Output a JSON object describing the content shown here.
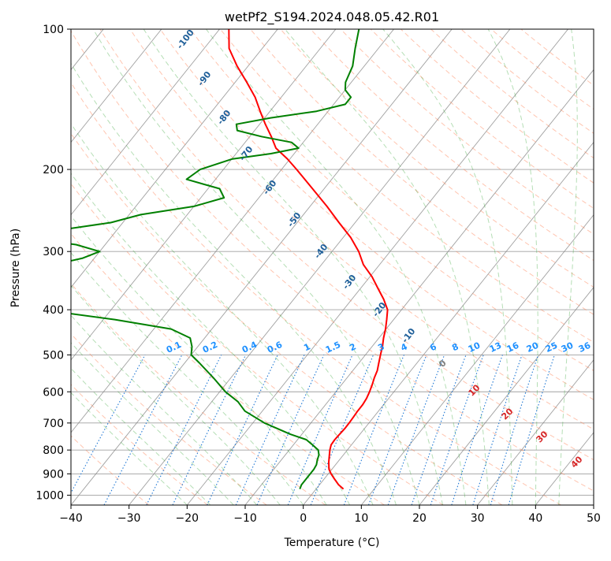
{
  "chart_data": {
    "type": "line",
    "chart_kind": "skew-T log-p diagram",
    "title": "wetPf2_S194.2024.048.05.42.R01",
    "xlabel": "Temperature (°C)",
    "ylabel": "Pressure (hPa)",
    "xlim": [
      -40,
      50
    ],
    "ylim": [
      1050,
      100
    ],
    "y_scale": "log",
    "grid": true,
    "x_ticks": [
      -40,
      -30,
      -20,
      -10,
      0,
      10,
      20,
      30,
      40,
      50
    ],
    "x_tick_labels": [
      "−40",
      "−30",
      "−20",
      "−10",
      "0",
      "10",
      "20",
      "30",
      "40",
      "50"
    ],
    "y_ticks": [
      1000,
      900,
      800,
      700,
      600,
      500,
      400,
      300,
      200,
      100
    ],
    "y_tick_labels": [
      "1000",
      "900",
      "800",
      "700",
      "600",
      "500",
      "400",
      "300",
      "200",
      "100"
    ],
    "colors": {
      "temperature": "#ff0000",
      "dewpoint": "#008000",
      "isotherm": "#808080",
      "dry_adiabat": "#ff7f50",
      "moist_adiabat": "#2ca02c",
      "mixing_ratio": "#1f77d4",
      "dry_label": "#1f5f99",
      "mixing_label": "#1e90ff",
      "moist_label": "#d62728"
    },
    "series": [
      {
        "name": "temperature",
        "pressure": [
          970,
          950,
          920,
          900,
          880,
          850,
          820,
          800,
          780,
          760,
          740,
          720,
          700,
          680,
          660,
          640,
          620,
          600,
          580,
          560,
          540,
          520,
          500,
          480,
          460,
          440,
          420,
          400,
          380,
          360,
          340,
          320,
          300,
          280,
          260,
          240,
          220,
          200,
          190,
          180,
          170,
          160,
          150,
          140,
          130,
          120,
          110,
          100
        ],
        "temperature": [
          4.7,
          3.3,
          1.6,
          0.5,
          -0.5,
          -1.5,
          -2.4,
          -3.0,
          -3.5,
          -3.6,
          -3.5,
          -3.4,
          -3.4,
          -3.5,
          -3.6,
          -3.6,
          -3.8,
          -4.2,
          -4.7,
          -5.3,
          -5.8,
          -6.6,
          -7.4,
          -8.2,
          -9.2,
          -10.1,
          -11.2,
          -12.4,
          -14.5,
          -17.0,
          -19.6,
          -22.8,
          -25.4,
          -28.7,
          -32.8,
          -37.1,
          -42.0,
          -47.4,
          -50.4,
          -53.9,
          -56.3,
          -59.0,
          -61.7,
          -64.5,
          -68.0,
          -71.9,
          -75.7,
          -78.4
        ]
      },
      {
        "name": "dewpoint",
        "pressure": [
          970,
          950,
          920,
          900,
          880,
          860,
          840,
          820,
          800,
          780,
          760,
          740,
          700,
          660,
          630,
          600,
          560,
          520,
          500,
          480,
          460,
          440,
          420,
          400,
          380,
          370,
          360,
          350,
          340,
          330,
          320,
          310,
          300,
          290,
          285,
          280,
          270,
          260,
          250,
          240,
          230,
          220,
          210,
          200,
          190,
          185,
          180,
          175,
          170,
          165,
          160,
          155,
          150,
          145,
          140,
          135,
          130,
          120,
          110,
          100
        ],
        "dewpoint": [
          -2.8,
          -3.1,
          -3.1,
          -3.1,
          -3.1,
          -3.3,
          -3.8,
          -4.2,
          -5.0,
          -6.7,
          -8.5,
          -12.0,
          -18.0,
          -23.0,
          -25.5,
          -29.0,
          -33.0,
          -37.5,
          -40.0,
          -41.0,
          -42.5,
          -47.0,
          -58.0,
          -72.0,
          -98.0,
          -100.0,
          -94.0,
          -87.0,
          -86.0,
          -82.0,
          -76.0,
          -72.0,
          -70.0,
          -75.0,
          -80.0,
          -86.0,
          -80.0,
          -72.0,
          -68.0,
          -60.0,
          -56.0,
          -58.0,
          -65.0,
          -64.0,
          -60.0,
          -54.0,
          -50.0,
          -52.0,
          -58.0,
          -63.0,
          -64.0,
          -59.0,
          -52.0,
          -48.0,
          -48.0,
          -50.0,
          -51.0,
          -52.0,
          -54.0,
          -56.0
        ]
      }
    ],
    "dry_adiabat_labels": [
      "-100",
      "-90",
      "-80",
      "-70",
      "-60",
      "-50",
      "-40",
      "-30",
      "-20",
      "-10"
    ],
    "mixing_ratio_labels": [
      "0.1",
      "0.2",
      "0.4",
      "0.6",
      "1",
      "1.5",
      "2",
      "3",
      "4",
      "6",
      "8",
      "10",
      "13",
      "16",
      "20",
      "25",
      "30",
      "36"
    ],
    "moist_adiabat_labels": [
      "0",
      "10",
      "20",
      "30",
      "40"
    ]
  }
}
